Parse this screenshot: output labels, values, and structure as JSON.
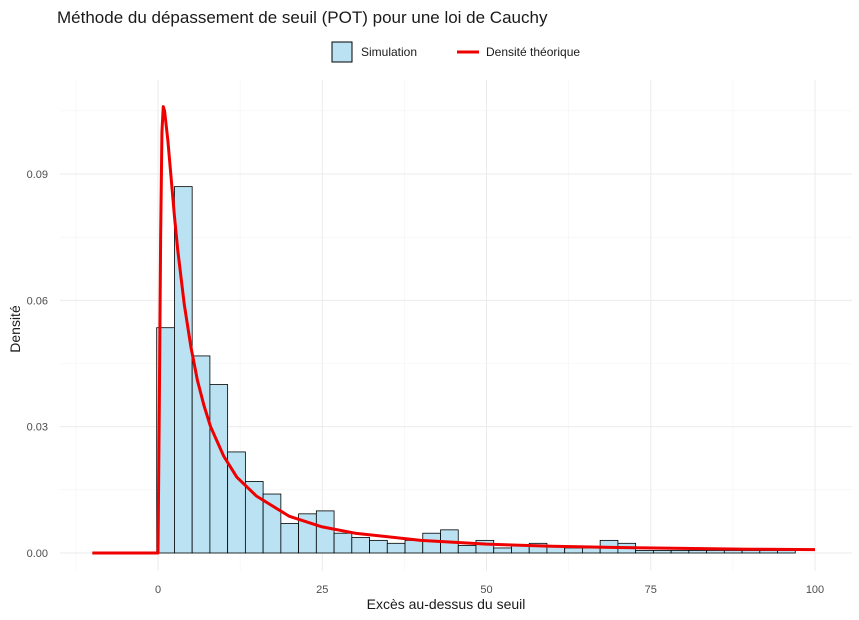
{
  "chart_data": {
    "type": "bar",
    "title": "Méthode du dépassement de seuil (POT) pour une loi de Cauchy",
    "xlabel": "Excès au-dessus du seuil",
    "ylabel": "Densité",
    "xlim": [
      -10,
      100
    ],
    "ylim": [
      0,
      0.107
    ],
    "x_ticks": [
      0,
      25,
      50,
      75,
      100
    ],
    "x_tick_labels": [
      "0",
      "25",
      "50",
      "75",
      "100"
    ],
    "y_ticks": [
      0,
      0.03,
      0.06,
      0.09
    ],
    "y_tick_labels": [
      "0.00",
      "0.03",
      "0.06",
      "0.09"
    ],
    "grid": true,
    "legend_position": "top",
    "legend": {
      "histogram_label": "Simulation",
      "line_label": "Densité théorique"
    },
    "histogram": {
      "name": "Simulation",
      "bin_width": 2.7,
      "bins_start": [
        -0.2,
        2.5,
        5.2,
        7.9,
        10.6,
        13.3,
        16.0,
        18.7,
        21.4,
        24.1,
        26.8,
        29.5,
        32.2,
        34.9,
        37.6,
        40.3,
        43.0,
        45.7,
        48.4,
        51.1,
        53.8,
        56.5,
        59.2,
        61.9,
        64.6,
        67.3,
        70.0,
        72.7,
        75.4,
        78.1,
        80.8,
        83.5,
        86.2,
        88.9,
        91.6,
        94.3
      ],
      "values": [
        0.0535,
        0.087,
        0.0468,
        0.04,
        0.024,
        0.017,
        0.014,
        0.007,
        0.0093,
        0.01,
        0.0047,
        0.0037,
        0.003,
        0.0023,
        0.003,
        0.0047,
        0.0055,
        0.0018,
        0.003,
        0.0012,
        0.0018,
        0.0023,
        0.0018,
        0.0012,
        0.0012,
        0.003,
        0.0023,
        0.0006,
        0.0006,
        0.0006,
        0.0006,
        0.0006,
        0.0006,
        0.0006,
        0.0006,
        0.0006
      ],
      "fill_color": "#bae2f2",
      "edge_color": "#000000"
    },
    "series": [
      {
        "name": "Densité théorique",
        "color": "#ee0000",
        "x": [
          -10,
          -5,
          0,
          0.2,
          0.4,
          0.6,
          0.8,
          1.0,
          1.5,
          2,
          2.5,
          3,
          4,
          5,
          6,
          7,
          8,
          10,
          12,
          15,
          20,
          25,
          30,
          40,
          50,
          60,
          70,
          80,
          90,
          100
        ],
        "y": [
          0,
          0,
          0,
          0.035,
          0.075,
          0.1,
          0.106,
          0.105,
          0.098,
          0.089,
          0.08,
          0.072,
          0.059,
          0.049,
          0.041,
          0.035,
          0.03,
          0.023,
          0.018,
          0.0135,
          0.0087,
          0.0062,
          0.0047,
          0.003,
          0.0021,
          0.0016,
          0.0013,
          0.0011,
          0.0009,
          0.0008
        ]
      }
    ]
  }
}
